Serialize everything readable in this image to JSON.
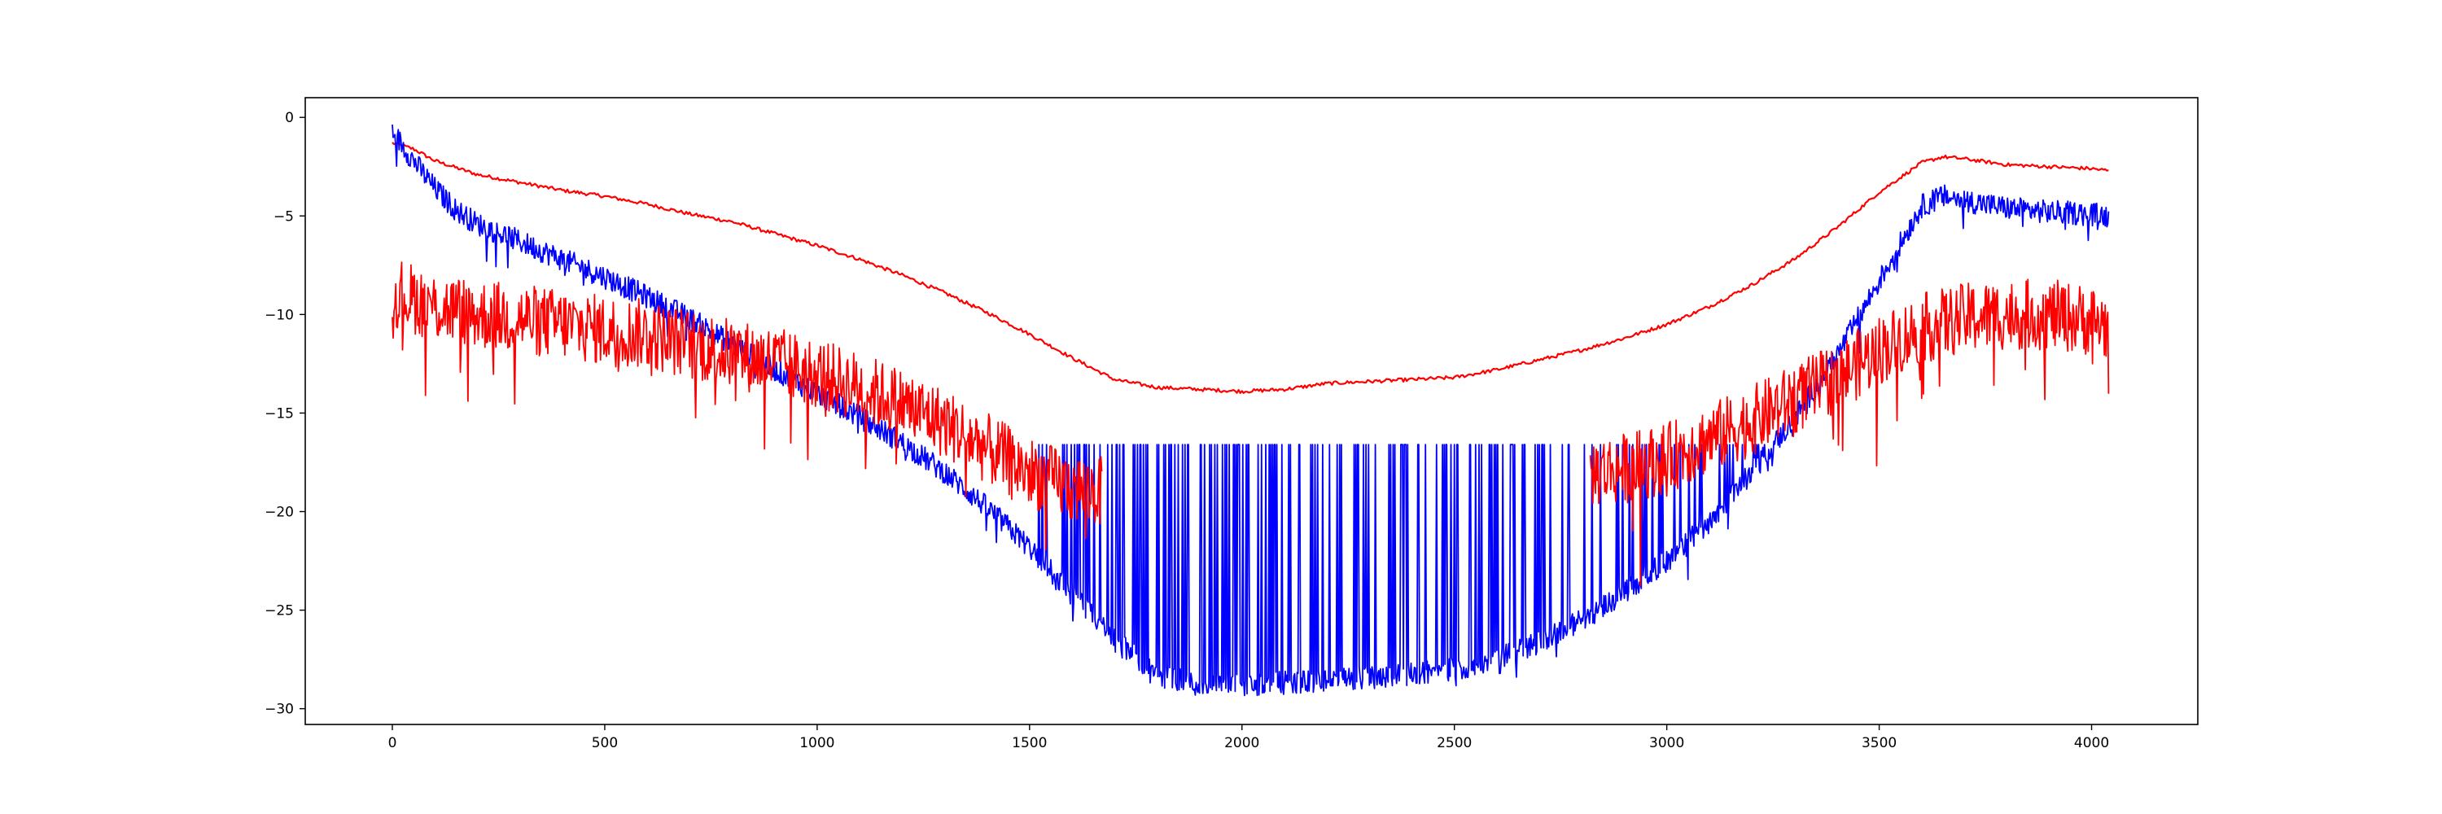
{
  "chart_data": {
    "type": "line",
    "title": "",
    "xlabel": "",
    "ylabel": "",
    "xlim": [
      -205,
      4250
    ],
    "ylim": [
      -30.8,
      1.0
    ],
    "grid": false,
    "legend": "none",
    "x_ticks": [
      {
        "value": 0,
        "label": "0"
      },
      {
        "value": 500,
        "label": "500"
      },
      {
        "value": 1000,
        "label": "1000"
      },
      {
        "value": 1500,
        "label": "1500"
      },
      {
        "value": 2000,
        "label": "2000"
      },
      {
        "value": 2500,
        "label": "2500"
      },
      {
        "value": 3000,
        "label": "3000"
      },
      {
        "value": 3500,
        "label": "3500"
      },
      {
        "value": 4000,
        "label": "4000"
      }
    ],
    "y_ticks": [
      {
        "value": 0,
        "label": "0"
      },
      {
        "value": -5,
        "label": "−5"
      },
      {
        "value": -10,
        "label": "−10"
      },
      {
        "value": -15,
        "label": "−15"
      },
      {
        "value": -20,
        "label": "−20"
      },
      {
        "value": -25,
        "label": "−25"
      },
      {
        "value": -30,
        "label": "−30"
      }
    ],
    "series": [
      {
        "color": "#ff0000",
        "style": "smooth",
        "points": [
          [
            0,
            -1.3
          ],
          [
            50,
            -1.6
          ],
          [
            100,
            -2.2
          ],
          [
            200,
            -2.9
          ],
          [
            300,
            -3.3
          ],
          [
            400,
            -3.7
          ],
          [
            500,
            -4.0
          ],
          [
            600,
            -4.4
          ],
          [
            700,
            -4.9
          ],
          [
            800,
            -5.3
          ],
          [
            900,
            -5.9
          ],
          [
            1000,
            -6.5
          ],
          [
            1100,
            -7.2
          ],
          [
            1200,
            -8.0
          ],
          [
            1300,
            -8.9
          ],
          [
            1400,
            -9.9
          ],
          [
            1500,
            -11.0
          ],
          [
            1600,
            -12.2
          ],
          [
            1700,
            -13.3
          ],
          [
            1800,
            -13.7
          ],
          [
            1900,
            -13.8
          ],
          [
            2000,
            -13.9
          ],
          [
            2100,
            -13.8
          ],
          [
            2200,
            -13.5
          ],
          [
            2300,
            -13.4
          ],
          [
            2400,
            -13.3
          ],
          [
            2500,
            -13.2
          ],
          [
            2600,
            -12.8
          ],
          [
            2700,
            -12.3
          ],
          [
            2800,
            -11.8
          ],
          [
            2900,
            -11.2
          ],
          [
            3000,
            -10.5
          ],
          [
            3100,
            -9.6
          ],
          [
            3200,
            -8.5
          ],
          [
            3300,
            -7.2
          ],
          [
            3400,
            -5.6
          ],
          [
            3500,
            -3.8
          ],
          [
            3600,
            -2.3
          ],
          [
            3650,
            -2.0
          ],
          [
            3700,
            -2.1
          ],
          [
            3800,
            -2.4
          ],
          [
            3900,
            -2.5
          ],
          [
            4000,
            -2.6
          ],
          [
            4040,
            -2.7
          ]
        ]
      },
      {
        "color": "#0000ff",
        "style": "noisy",
        "noise": 0.6,
        "dropout_range": [
          1500,
          3230
        ],
        "dropout_ceiling": -16.6,
        "points": [
          [
            0,
            -0.7
          ],
          [
            50,
            -2.2
          ],
          [
            100,
            -3.6
          ],
          [
            150,
            -4.7
          ],
          [
            200,
            -5.4
          ],
          [
            300,
            -6.3
          ],
          [
            400,
            -7.2
          ],
          [
            500,
            -8.1
          ],
          [
            600,
            -9.1
          ],
          [
            700,
            -10.2
          ],
          [
            800,
            -11.5
          ],
          [
            900,
            -12.8
          ],
          [
            1000,
            -14.0
          ],
          [
            1100,
            -15.2
          ],
          [
            1200,
            -16.5
          ],
          [
            1300,
            -18.0
          ],
          [
            1400,
            -19.8
          ],
          [
            1500,
            -21.8
          ],
          [
            1600,
            -24.2
          ],
          [
            1700,
            -26.5
          ],
          [
            1800,
            -28.3
          ],
          [
            1900,
            -28.8
          ],
          [
            2000,
            -28.8
          ],
          [
            2100,
            -28.7
          ],
          [
            2200,
            -28.6
          ],
          [
            2300,
            -28.4
          ],
          [
            2400,
            -28.2
          ],
          [
            2500,
            -28.0
          ],
          [
            2600,
            -27.5
          ],
          [
            2700,
            -26.6
          ],
          [
            2800,
            -25.5
          ],
          [
            2900,
            -24.1
          ],
          [
            3000,
            -22.5
          ],
          [
            3100,
            -20.5
          ],
          [
            3200,
            -18.0
          ],
          [
            3300,
            -15.3
          ],
          [
            3400,
            -12.1
          ],
          [
            3500,
            -8.3
          ],
          [
            3600,
            -4.5
          ],
          [
            3650,
            -4.0
          ],
          [
            3700,
            -4.2
          ],
          [
            3800,
            -4.6
          ],
          [
            3900,
            -4.8
          ],
          [
            4000,
            -4.9
          ],
          [
            4040,
            -5.0
          ]
        ]
      },
      {
        "color": "#ff0000",
        "style": "noisy",
        "noise": 1.8,
        "x_gaps": [
          [
            1670,
            2820
          ]
        ],
        "points": [
          [
            0,
            -8.8
          ],
          [
            100,
            -9.6
          ],
          [
            200,
            -10.0
          ],
          [
            300,
            -10.2
          ],
          [
            400,
            -10.5
          ],
          [
            500,
            -10.8
          ],
          [
            600,
            -11.0
          ],
          [
            700,
            -11.5
          ],
          [
            800,
            -12.0
          ],
          [
            900,
            -12.4
          ],
          [
            1000,
            -13.0
          ],
          [
            1100,
            -13.7
          ],
          [
            1200,
            -14.5
          ],
          [
            1300,
            -15.5
          ],
          [
            1400,
            -16.8
          ],
          [
            1500,
            -18.0
          ],
          [
            1600,
            -18.8
          ],
          [
            1670,
            -19.0
          ],
          [
            2820,
            -18.0
          ],
          [
            2900,
            -17.8
          ],
          [
            3000,
            -17.3
          ],
          [
            3100,
            -16.3
          ],
          [
            3200,
            -15.4
          ],
          [
            3300,
            -14.3
          ],
          [
            3400,
            -13.2
          ],
          [
            3500,
            -11.8
          ],
          [
            3600,
            -10.7
          ],
          [
            3700,
            -10.2
          ],
          [
            3800,
            -10.0
          ],
          [
            3900,
            -10.0
          ],
          [
            4000,
            -10.3
          ],
          [
            4040,
            -10.6
          ]
        ]
      }
    ]
  }
}
